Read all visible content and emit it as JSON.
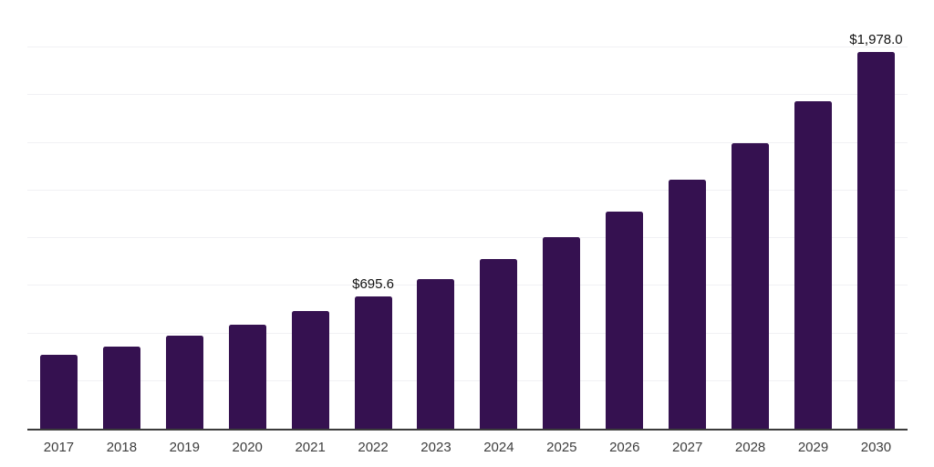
{
  "chart_data": {
    "type": "bar",
    "title": "",
    "xlabel": "",
    "ylabel": "",
    "categories": [
      "2017",
      "2018",
      "2019",
      "2020",
      "2021",
      "2022",
      "2023",
      "2024",
      "2025",
      "2026",
      "2027",
      "2028",
      "2029",
      "2030"
    ],
    "values": [
      390,
      433,
      490,
      545,
      620,
      695.6,
      785,
      890,
      1005,
      1140,
      1305,
      1500,
      1720,
      1978.0
    ],
    "point_labels": {
      "2022": "$695.6",
      "2030": "$1,978.0"
    },
    "ylim": [
      0,
      2250
    ],
    "gridline_step": 250,
    "grid": true,
    "legend": false,
    "y_axis_ticks_visible": false,
    "bar_color": "#351150"
  },
  "colors": {
    "background": "#ffffff",
    "bar": "#351150",
    "gridline": "#f1f1f4",
    "axis_line": "#3b3b3b",
    "tick_label": "#3d3d3d",
    "point_label": "#111111"
  }
}
